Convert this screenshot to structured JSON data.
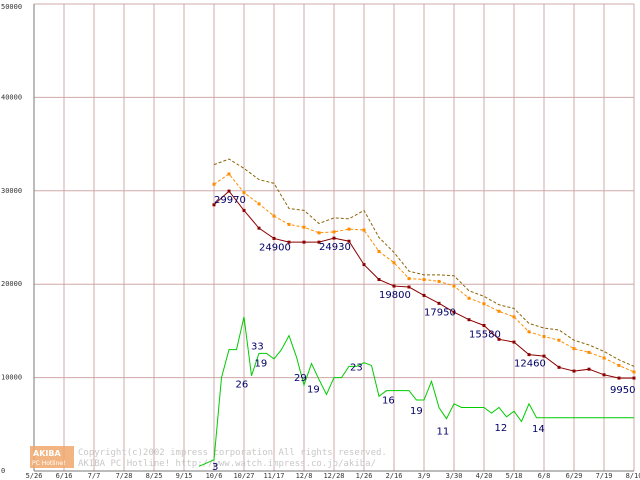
{
  "chart_data": {
    "type": "line",
    "title": "",
    "xlabel": "",
    "ylabel": "",
    "ylim": [
      0,
      50000
    ],
    "y_ticks": [
      0,
      10000,
      20000,
      30000,
      40000,
      50000
    ],
    "y_tick_labels": [
      "0",
      "10000",
      "20000",
      "30000",
      "40000",
      "50000"
    ],
    "x_tick_labels": [
      "5/26",
      "6/16",
      "7/7",
      "7/28",
      "8/25",
      "9/15",
      "10/6",
      "10/27",
      "11/17",
      "12/8",
      "12/28",
      "1/26",
      "2/16",
      "3/9",
      "3/30",
      "4/20",
      "5/18",
      "6/8",
      "6/29",
      "7/19",
      "8/10"
    ],
    "grid": true,
    "legend": "none",
    "x_index_count": 41,
    "series": [
      {
        "name": "upper",
        "color": "#8b6508",
        "style": "dashed",
        "markers": false,
        "x": [
          12,
          13,
          14,
          15,
          16,
          17,
          18,
          19,
          20,
          21,
          22,
          23,
          24,
          25,
          26,
          27,
          28,
          29,
          30,
          31,
          32,
          33,
          34,
          35,
          36,
          37,
          38,
          39,
          40
        ],
        "values": [
          32800,
          33400,
          32400,
          31200,
          30800,
          28100,
          27900,
          26500,
          27100,
          27000,
          27900,
          25000,
          23400,
          21400,
          21000,
          21000,
          20900,
          19300,
          18700,
          17800,
          17400,
          15800,
          15300,
          15100,
          14000,
          13500,
          12800,
          11900,
          11200
        ]
      },
      {
        "name": "average",
        "color": "#ff8c00",
        "style": "dashed",
        "markers": true,
        "x": [
          12,
          13,
          14,
          15,
          16,
          17,
          18,
          19,
          20,
          21,
          22,
          23,
          24,
          25,
          26,
          27,
          28,
          29,
          30,
          31,
          32,
          33,
          34,
          35,
          36,
          37,
          38,
          39,
          40
        ],
        "values": [
          30700,
          31800,
          29800,
          28600,
          27300,
          26400,
          26100,
          25500,
          25600,
          25900,
          25800,
          23500,
          22300,
          20600,
          20500,
          20300,
          19800,
          18500,
          17900,
          17100,
          16500,
          14900,
          14400,
          14000,
          13100,
          12700,
          12100,
          11300,
          10600
        ]
      },
      {
        "name": "lowest",
        "color": "#8b0000",
        "style": "solid",
        "markers": true,
        "x": [
          12,
          13,
          14,
          15,
          16,
          17,
          18,
          19,
          20,
          21,
          22,
          23,
          24,
          25,
          26,
          27,
          28,
          29,
          30,
          31,
          32,
          33,
          34,
          35,
          36,
          37,
          38,
          39,
          40
        ],
        "values": [
          28500,
          29970,
          27900,
          26000,
          24900,
          24500,
          24500,
          24500,
          24930,
          24600,
          22100,
          20500,
          19800,
          19700,
          18800,
          17950,
          17000,
          16200,
          15580,
          14100,
          13800,
          12460,
          12300,
          11100,
          10700,
          10900,
          10300,
          9950,
          9950
        ]
      },
      {
        "name": "count",
        "color": "#00cc00",
        "style": "solid",
        "markers": false,
        "x": [
          11,
          12,
          12.5,
          13,
          13.5,
          14,
          14.5,
          15,
          15.5,
          16,
          16.5,
          17,
          17.5,
          18,
          18.5,
          19,
          19.5,
          20,
          20.5,
          21,
          21.5,
          22,
          22.5,
          23,
          23.5,
          24,
          24.5,
          25,
          25.5,
          26,
          26.5,
          27,
          27.5,
          28,
          28.5,
          29,
          29.5,
          30,
          30.5,
          31,
          31.5,
          32,
          32.5,
          33,
          33.5,
          34,
          34.5,
          35,
          35.5,
          36,
          36.5,
          37,
          37.5,
          38,
          38.5,
          39,
          39.5,
          40
        ],
        "values": [
          500,
          1200,
          10000,
          13000,
          13000,
          16500,
          10200,
          12600,
          12600,
          12000,
          13000,
          14500,
          12200,
          9200,
          11500,
          9800,
          8200,
          10000,
          10000,
          11200,
          11200,
          11600,
          11300,
          8000,
          8600,
          8600,
          8600,
          8600,
          7600,
          7600,
          9600,
          6800,
          5600,
          7200,
          6800,
          6800,
          6800,
          6800,
          6200,
          6800,
          5800,
          6400,
          5300,
          7200,
          5700,
          5700,
          5700,
          5700,
          5700,
          5700,
          5700,
          5700,
          5700,
          5700,
          5700,
          5700,
          5700,
          5700
        ]
      }
    ],
    "data_labels": [
      {
        "series": "lowest",
        "text": "29970"
      },
      {
        "series": "lowest",
        "text": "24900"
      },
      {
        "series": "lowest",
        "text": "24930"
      },
      {
        "series": "lowest",
        "text": "19800"
      },
      {
        "series": "lowest",
        "text": "17950"
      },
      {
        "series": "lowest",
        "text": "15580"
      },
      {
        "series": "lowest",
        "text": "12460"
      },
      {
        "series": "lowest",
        "text": "9950"
      },
      {
        "series": "count",
        "text": "3"
      },
      {
        "series": "count",
        "text": "26"
      },
      {
        "series": "count",
        "text": "33"
      },
      {
        "series": "count",
        "text": "19"
      },
      {
        "series": "count",
        "text": "29"
      },
      {
        "series": "count",
        "text": "19"
      },
      {
        "series": "count",
        "text": "23"
      },
      {
        "series": "count",
        "text": "16"
      },
      {
        "series": "count",
        "text": "19"
      },
      {
        "series": "count",
        "text": "11"
      },
      {
        "series": "count",
        "text": "12"
      },
      {
        "series": "count",
        "text": "14"
      }
    ]
  },
  "watermark": {
    "badge_top": "AKIBA",
    "badge_bottom": "PC Hotline!",
    "copyright": "Copyright(c)2002 impress corporation All rights reserved.",
    "site": "AKIBA PC Hotline! http://www.watch.impress.co.jp/akiba/"
  }
}
